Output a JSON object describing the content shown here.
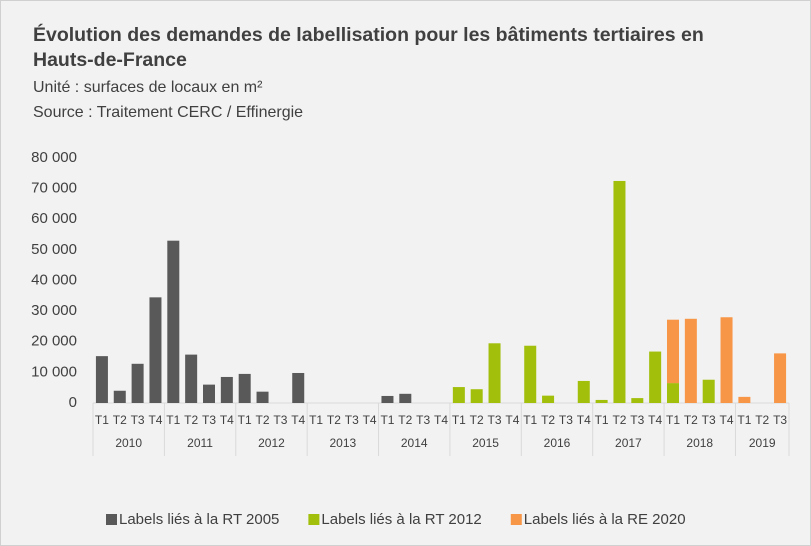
{
  "chart_data": {
    "type": "stacked_bar",
    "title": "Évolution des demandes de labellisation pour les bâtiments tertiaires en Hauts-de-France",
    "subtitle": "Unité : surfaces de locaux en m²",
    "source": "Source :  Traitement CERC / Effinergie",
    "categories": [
      "T1",
      "T2",
      "T3",
      "T4",
      "T1",
      "T2",
      "T3",
      "T4",
      "T1",
      "T2",
      "T3",
      "T4",
      "T1",
      "T2",
      "T3",
      "T4",
      "T1",
      "T2",
      "T3",
      "T4",
      "T1",
      "T2",
      "T3",
      "T4",
      "T1",
      "T2",
      "T3",
      "T4",
      "T1",
      "T2",
      "T3",
      "T4",
      "T1",
      "T2",
      "T3",
      "T4",
      "T1",
      "T2",
      "T3"
    ],
    "year_groups": [
      {
        "label": "2010",
        "size": 4
      },
      {
        "label": "2011",
        "size": 4
      },
      {
        "label": "2012",
        "size": 4
      },
      {
        "label": "2013",
        "size": 4
      },
      {
        "label": "2014",
        "size": 4
      },
      {
        "label": "2015",
        "size": 4
      },
      {
        "label": "2016",
        "size": 4
      },
      {
        "label": "2017",
        "size": 4
      },
      {
        "label": "2018",
        "size": 4
      },
      {
        "label": "2019",
        "size": 3
      }
    ],
    "series": [
      {
        "name": "Labels liés à la RT 2005",
        "color": "#595959",
        "values": [
          15300,
          4000,
          12800,
          34500,
          53000,
          15800,
          6000,
          8500,
          9500,
          3700,
          0,
          9800,
          0,
          0,
          0,
          0,
          2300,
          3000,
          0,
          0,
          0,
          0,
          0,
          0,
          0,
          0,
          0,
          0,
          0,
          0,
          0,
          0,
          0,
          0,
          0,
          0,
          0,
          0,
          0
        ]
      },
      {
        "name": "Labels liés à la RT 2012",
        "color": "#a2bf0b",
        "values": [
          0,
          0,
          0,
          0,
          0,
          0,
          0,
          0,
          0,
          0,
          0,
          0,
          0,
          0,
          0,
          0,
          0,
          0,
          0,
          0,
          5200,
          4500,
          19500,
          0,
          18700,
          2400,
          0,
          7200,
          1000,
          72500,
          1600,
          16800,
          6500,
          0,
          7600,
          0,
          0,
          0,
          0
        ]
      },
      {
        "name": "Labels liés à la RE 2020",
        "color": "#f79646",
        "values": [
          0,
          0,
          0,
          0,
          0,
          0,
          0,
          0,
          0,
          0,
          0,
          0,
          0,
          0,
          0,
          0,
          0,
          0,
          0,
          0,
          0,
          0,
          0,
          0,
          0,
          0,
          0,
          0,
          0,
          0,
          0,
          0,
          20700,
          27500,
          0,
          28000,
          2000,
          0,
          16200
        ]
      }
    ],
    "ylim": [
      0,
      80000
    ],
    "yticks": [
      0,
      {
        "value": 10000,
        "label": "10 000"
      },
      {
        "value": 20000,
        "label": "20 000"
      },
      {
        "value": 30000,
        "label": "30 000"
      },
      {
        "value": 40000,
        "label": "40 000"
      },
      {
        "value": 50000,
        "label": "50 000"
      },
      {
        "value": 60000,
        "label": "60 000"
      },
      {
        "value": 70000,
        "label": "70 000"
      },
      {
        "value": 80000,
        "label": "80 000"
      }
    ],
    "legend": "bottom"
  }
}
